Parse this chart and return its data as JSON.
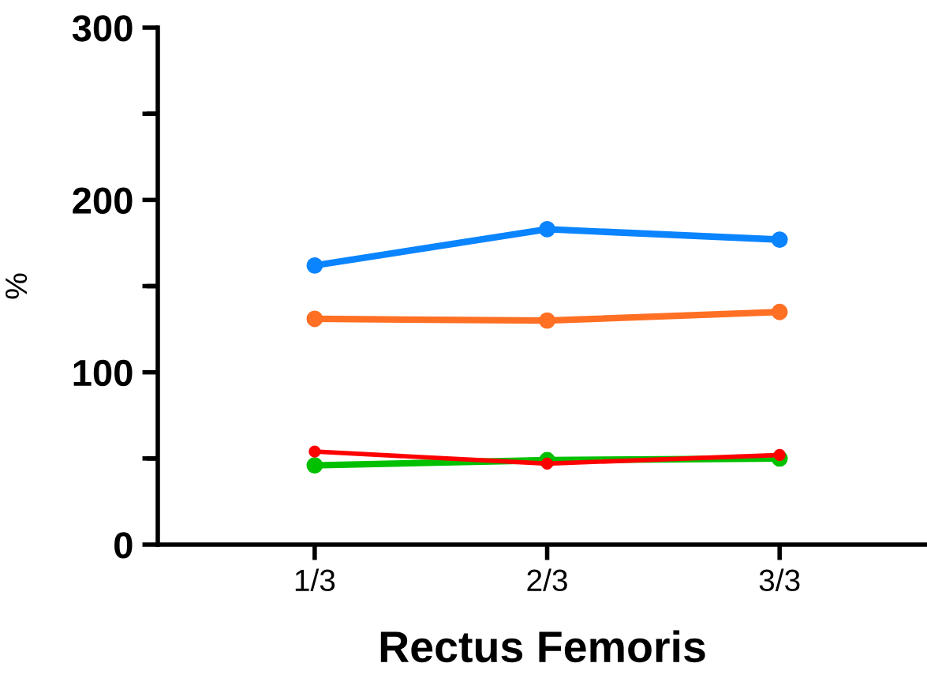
{
  "chart_data": {
    "type": "line",
    "xlabel": "Rectus Femoris",
    "ylabel": "%",
    "categories": [
      "1/3",
      "2/3",
      "3/3"
    ],
    "series": [
      {
        "color": "#0a84ff",
        "values": [
          162,
          183,
          177
        ]
      },
      {
        "color": "#ff6f24",
        "values": [
          131,
          130,
          135
        ]
      },
      {
        "color": "#00c000",
        "values": [
          46,
          49,
          50
        ]
      },
      {
        "color": "#ff0000",
        "values": [
          54,
          47,
          52
        ]
      }
    ],
    "ylim": [
      0,
      300
    ],
    "yticks": [
      0,
      {
        "value": 50,
        "label": null
      },
      100,
      {
        "value": 150,
        "label": null
      },
      200,
      {
        "value": 250,
        "label": null
      },
      300
    ],
    "marker": "circle",
    "line_style": "solid",
    "grid": false,
    "legend": false
  }
}
